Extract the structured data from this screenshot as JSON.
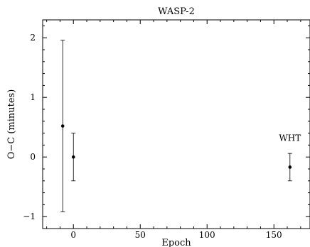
{
  "chart_data": {
    "type": "scatter",
    "title": "WASP-2",
    "xlabel": "Epoch",
    "ylabel": "O−C (minutes)",
    "xlim": [
      -23,
      177
    ],
    "ylim": [
      -1.2,
      2.3
    ],
    "xticks": [
      0,
      50,
      100,
      150
    ],
    "yticks": [
      -1,
      0,
      1,
      2
    ],
    "xtick_labels": [
      "0",
      "50",
      "100",
      "150"
    ],
    "ytick_labels": [
      "−1",
      "0",
      "1",
      "2"
    ],
    "grid": false,
    "series": [
      {
        "x": [
          -8,
          0,
          162
        ],
        "y": [
          0.52,
          0.0,
          -0.17
        ],
        "yerr_low": [
          1.44,
          0.4,
          0.23
        ],
        "yerr_high": [
          1.44,
          0.4,
          0.23
        ]
      }
    ],
    "annotations": [
      {
        "text": "WHT",
        "x": 162,
        "y": 0.27
      }
    ]
  }
}
